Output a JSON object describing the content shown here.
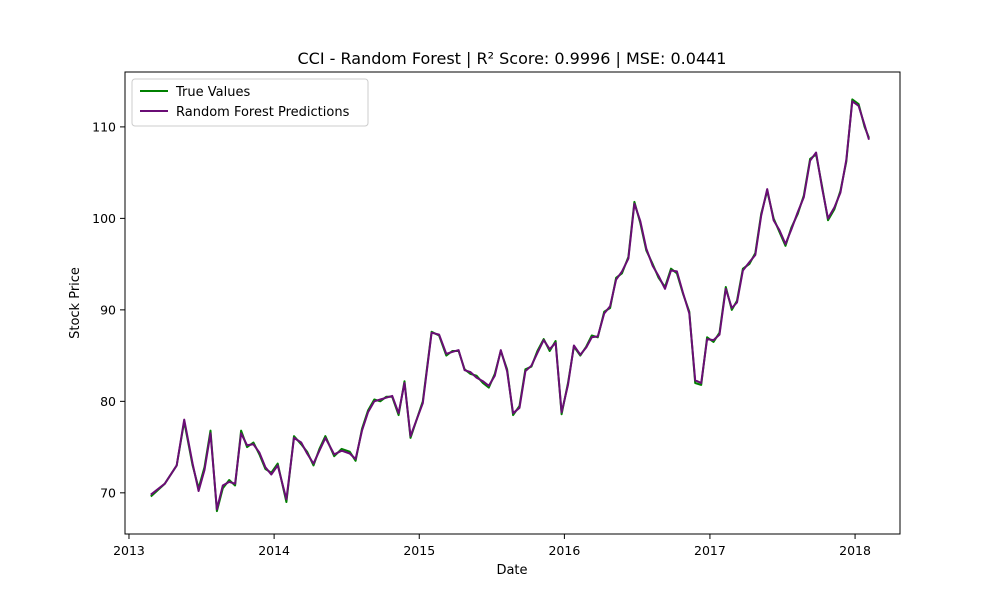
{
  "chart_data": {
    "type": "line",
    "title": "CCI - Random Forest | R² Score: 0.9996 | MSE: 0.0441",
    "xlabel": "Date",
    "ylabel": "Stock Price",
    "xlim": [
      "2012-12-22",
      "2018-04-24"
    ],
    "ylim": [
      65.5,
      116
    ],
    "x_ticks": [
      "2013",
      "2014",
      "2015",
      "2016",
      "2017",
      "2018"
    ],
    "y_ticks": [
      70,
      80,
      90,
      100,
      110
    ],
    "grid": false,
    "legend_position": "upper-left",
    "x": [
      "2013-02-25",
      "2013-04-01",
      "2013-05-01",
      "2013-05-20",
      "2013-06-10",
      "2013-06-25",
      "2013-07-10",
      "2013-07-25",
      "2013-08-10",
      "2013-08-25",
      "2013-09-10",
      "2013-09-25",
      "2013-10-10",
      "2013-10-25",
      "2013-11-10",
      "2013-11-25",
      "2013-12-10",
      "2013-12-25",
      "2014-01-10",
      "2014-02-01",
      "2014-02-20",
      "2014-03-10",
      "2014-03-25",
      "2014-04-10",
      "2014-04-25",
      "2014-05-10",
      "2014-06-01",
      "2014-06-20",
      "2014-07-10",
      "2014-07-25",
      "2014-08-10",
      "2014-08-25",
      "2014-09-10",
      "2014-09-25",
      "2014-10-10",
      "2014-10-25",
      "2014-11-10",
      "2014-11-25",
      "2014-12-10",
      "2015-01-10",
      "2015-02-01",
      "2015-02-20",
      "2015-03-10",
      "2015-03-25",
      "2015-04-10",
      "2015-04-25",
      "2015-05-10",
      "2015-05-25",
      "2015-06-10",
      "2015-06-25",
      "2015-07-10",
      "2015-07-25",
      "2015-08-10",
      "2015-08-25",
      "2015-09-10",
      "2015-09-25",
      "2015-10-10",
      "2015-10-25",
      "2015-11-10",
      "2015-11-25",
      "2015-12-10",
      "2015-12-25",
      "2016-01-10",
      "2016-01-25",
      "2016-02-10",
      "2016-02-25",
      "2016-03-10",
      "2016-03-25",
      "2016-04-10",
      "2016-04-25",
      "2016-05-10",
      "2016-05-25",
      "2016-06-10",
      "2016-06-25",
      "2016-07-10",
      "2016-07-25",
      "2016-08-10",
      "2016-08-25",
      "2016-09-10",
      "2016-09-25",
      "2016-10-10",
      "2016-10-25",
      "2016-11-10",
      "2016-11-25",
      "2016-12-10",
      "2016-12-25",
      "2017-01-10",
      "2017-01-25",
      "2017-02-10",
      "2017-02-25",
      "2017-03-10",
      "2017-03-25",
      "2017-04-10",
      "2017-04-25",
      "2017-05-10",
      "2017-05-25",
      "2017-06-10",
      "2017-06-25",
      "2017-07-10",
      "2017-07-25",
      "2017-08-10",
      "2017-08-25",
      "2017-09-10",
      "2017-09-25",
      "2017-10-10",
      "2017-10-25",
      "2017-11-10",
      "2017-11-25",
      "2017-12-10",
      "2017-12-25",
      "2018-01-10",
      "2018-01-25",
      "2018-02-05"
    ],
    "series": [
      {
        "name": "True Values",
        "color": "#008000",
        "values": [
          69.6,
          71.0,
          73.0,
          77.8,
          73.0,
          70.5,
          72.8,
          76.8,
          68.0,
          70.5,
          71.4,
          70.8,
          76.8,
          75.0,
          75.5,
          74.2,
          72.6,
          72.2,
          73.2,
          69.0,
          76.2,
          75.3,
          74.5,
          73.0,
          74.8,
          76.2,
          74.0,
          74.8,
          74.5,
          73.5,
          77.0,
          79.0,
          80.2,
          80.0,
          80.5,
          80.5,
          78.5,
          82.2,
          76.0,
          80.0,
          87.6,
          87.2,
          85.0,
          85.5,
          85.5,
          83.5,
          83.0,
          82.8,
          82.0,
          81.5,
          83.0,
          85.5,
          83.5,
          78.5,
          79.5,
          83.5,
          83.8,
          85.5,
          86.8,
          85.5,
          86.6,
          78.6,
          82.0,
          86.0,
          85.0,
          86.0,
          87.2,
          87.0,
          89.8,
          90.2,
          93.5,
          94.0,
          95.8,
          101.8,
          99.5,
          96.5,
          95.0,
          93.5,
          92.5,
          94.5,
          94.0,
          91.8,
          89.8,
          82.0,
          81.8,
          87.0,
          86.5,
          87.5,
          92.5,
          90.0,
          91.0,
          94.5,
          95.0,
          96.2,
          100.5,
          103.0,
          100.0,
          98.5,
          97.0,
          99.0,
          100.5,
          102.5,
          106.5,
          107.0,
          103.5,
          99.8,
          101.0,
          103.0,
          106.2,
          113.0,
          112.5,
          110.0,
          108.8
        ]
      },
      {
        "name": "Random Forest Predictions",
        "color": "#6a0d75",
        "values": [
          69.8,
          71.0,
          73.0,
          78.0,
          73.2,
          70.2,
          72.5,
          76.5,
          68.2,
          70.8,
          71.2,
          71.0,
          76.5,
          75.2,
          75.3,
          74.4,
          72.8,
          72.0,
          73.0,
          69.3,
          76.0,
          75.5,
          74.3,
          73.2,
          74.6,
          76.0,
          74.2,
          74.6,
          74.3,
          73.7,
          76.8,
          78.8,
          80.0,
          80.2,
          80.4,
          80.6,
          78.7,
          82.0,
          76.2,
          79.8,
          87.5,
          87.3,
          85.2,
          85.4,
          85.6,
          83.4,
          83.2,
          82.6,
          82.2,
          81.7,
          82.8,
          85.6,
          83.3,
          78.7,
          79.3,
          83.3,
          83.9,
          85.3,
          86.7,
          85.7,
          86.4,
          78.8,
          81.8,
          86.1,
          85.1,
          85.9,
          87.0,
          87.1,
          89.6,
          90.4,
          93.3,
          94.2,
          95.6,
          101.6,
          99.7,
          96.7,
          94.8,
          93.7,
          92.3,
          94.3,
          94.2,
          91.9,
          89.6,
          82.3,
          82.0,
          86.8,
          86.7,
          87.3,
          92.3,
          90.2,
          90.8,
          94.3,
          95.2,
          96.0,
          100.3,
          103.2,
          99.8,
          98.7,
          97.2,
          98.8,
          100.7,
          102.3,
          106.3,
          107.2,
          103.3,
          100.0,
          101.2,
          102.8,
          106.4,
          112.8,
          112.3,
          110.2,
          108.6
        ]
      }
    ]
  }
}
